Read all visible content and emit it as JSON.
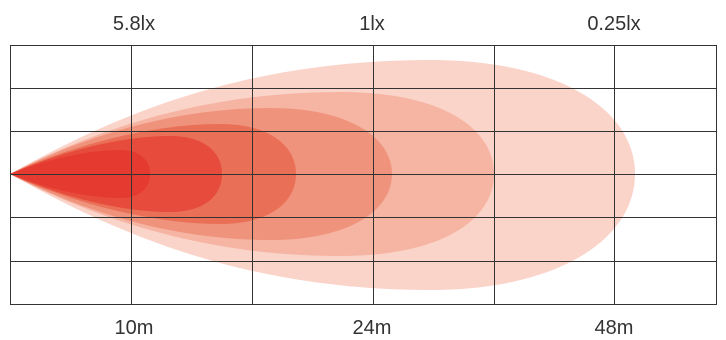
{
  "lux_labels": {
    "first": "5.8lx",
    "second": "1lx",
    "third": "0.25lx"
  },
  "distance_labels": {
    "first": "10m",
    "second": "24m",
    "third": "48m"
  },
  "beam_colors": {
    "outer": "#fad3c9",
    "layer2": "#f6b4a3",
    "layer3": "#f0937c",
    "layer4": "#ea6f57",
    "layer5": "#e74b3b",
    "core": "#e53a2f",
    "grid_line": "#333333"
  }
}
